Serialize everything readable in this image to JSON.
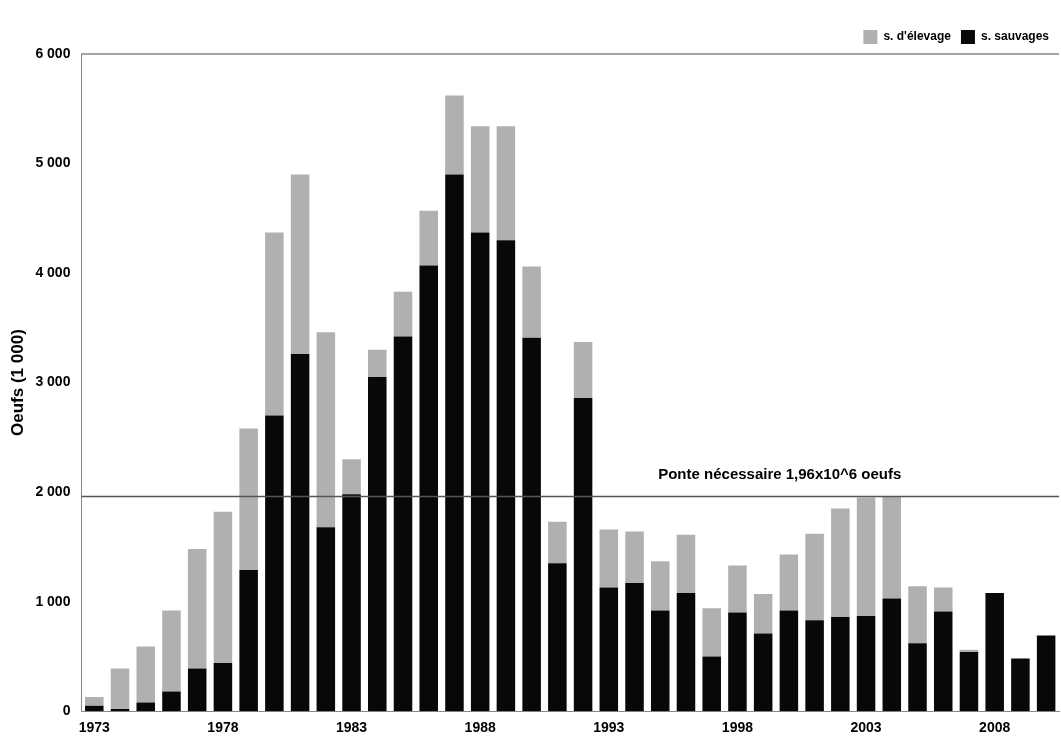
{
  "chart_data": {
    "type": "bar",
    "stacked": true,
    "ylabel": "Oeufs (1 000)",
    "categories": [
      "1973",
      null,
      null,
      null,
      null,
      "1978",
      null,
      null,
      null,
      null,
      "1983",
      null,
      null,
      null,
      null,
      "1988",
      null,
      null,
      null,
      null,
      "1993",
      null,
      null,
      null,
      null,
      "1998",
      null,
      null,
      null,
      null,
      "2003",
      null,
      null,
      null,
      null,
      "2008",
      null,
      null
    ],
    "series": [
      {
        "name": "s. sauvages",
        "color": "#080808",
        "values": [
          50,
          20,
          80,
          180,
          390,
          440,
          1290,
          2700,
          3260,
          1680,
          1980,
          3050,
          3420,
          4070,
          4900,
          4370,
          4300,
          3410,
          1350,
          2860,
          1130,
          1170,
          920,
          1080,
          500,
          900,
          710,
          920,
          830,
          860,
          870,
          1030,
          620,
          910,
          540,
          1080,
          480,
          690
        ]
      },
      {
        "name": "s. d'élevage",
        "color": "#b0b0b0",
        "values": [
          80,
          370,
          510,
          740,
          1090,
          1380,
          1290,
          1670,
          1640,
          1780,
          320,
          250,
          410,
          500,
          720,
          970,
          1040,
          650,
          380,
          510,
          530,
          470,
          450,
          530,
          440,
          430,
          360,
          510,
          790,
          990,
          1080,
          930,
          520,
          220,
          20,
          0,
          0,
          0
        ]
      }
    ],
    "ylim": [
      0,
      6000
    ],
    "yticks": [
      {
        "value": 0,
        "label": "0"
      },
      {
        "value": 1000,
        "label": "1 000"
      },
      {
        "value": 2000,
        "label": "2 000"
      },
      {
        "value": 3000,
        "label": "3 000"
      },
      {
        "value": 4000,
        "label": "4 000"
      },
      {
        "value": 5000,
        "label": "5 000"
      },
      {
        "value": 6000,
        "label": "6 000"
      }
    ],
    "ref_lines": [
      {
        "axis": "y",
        "value": 1960,
        "label": "Ponte nécessaire 1,96x10^6 oeufs",
        "color": "#555555"
      }
    ],
    "legend": "top right",
    "grid": false
  }
}
